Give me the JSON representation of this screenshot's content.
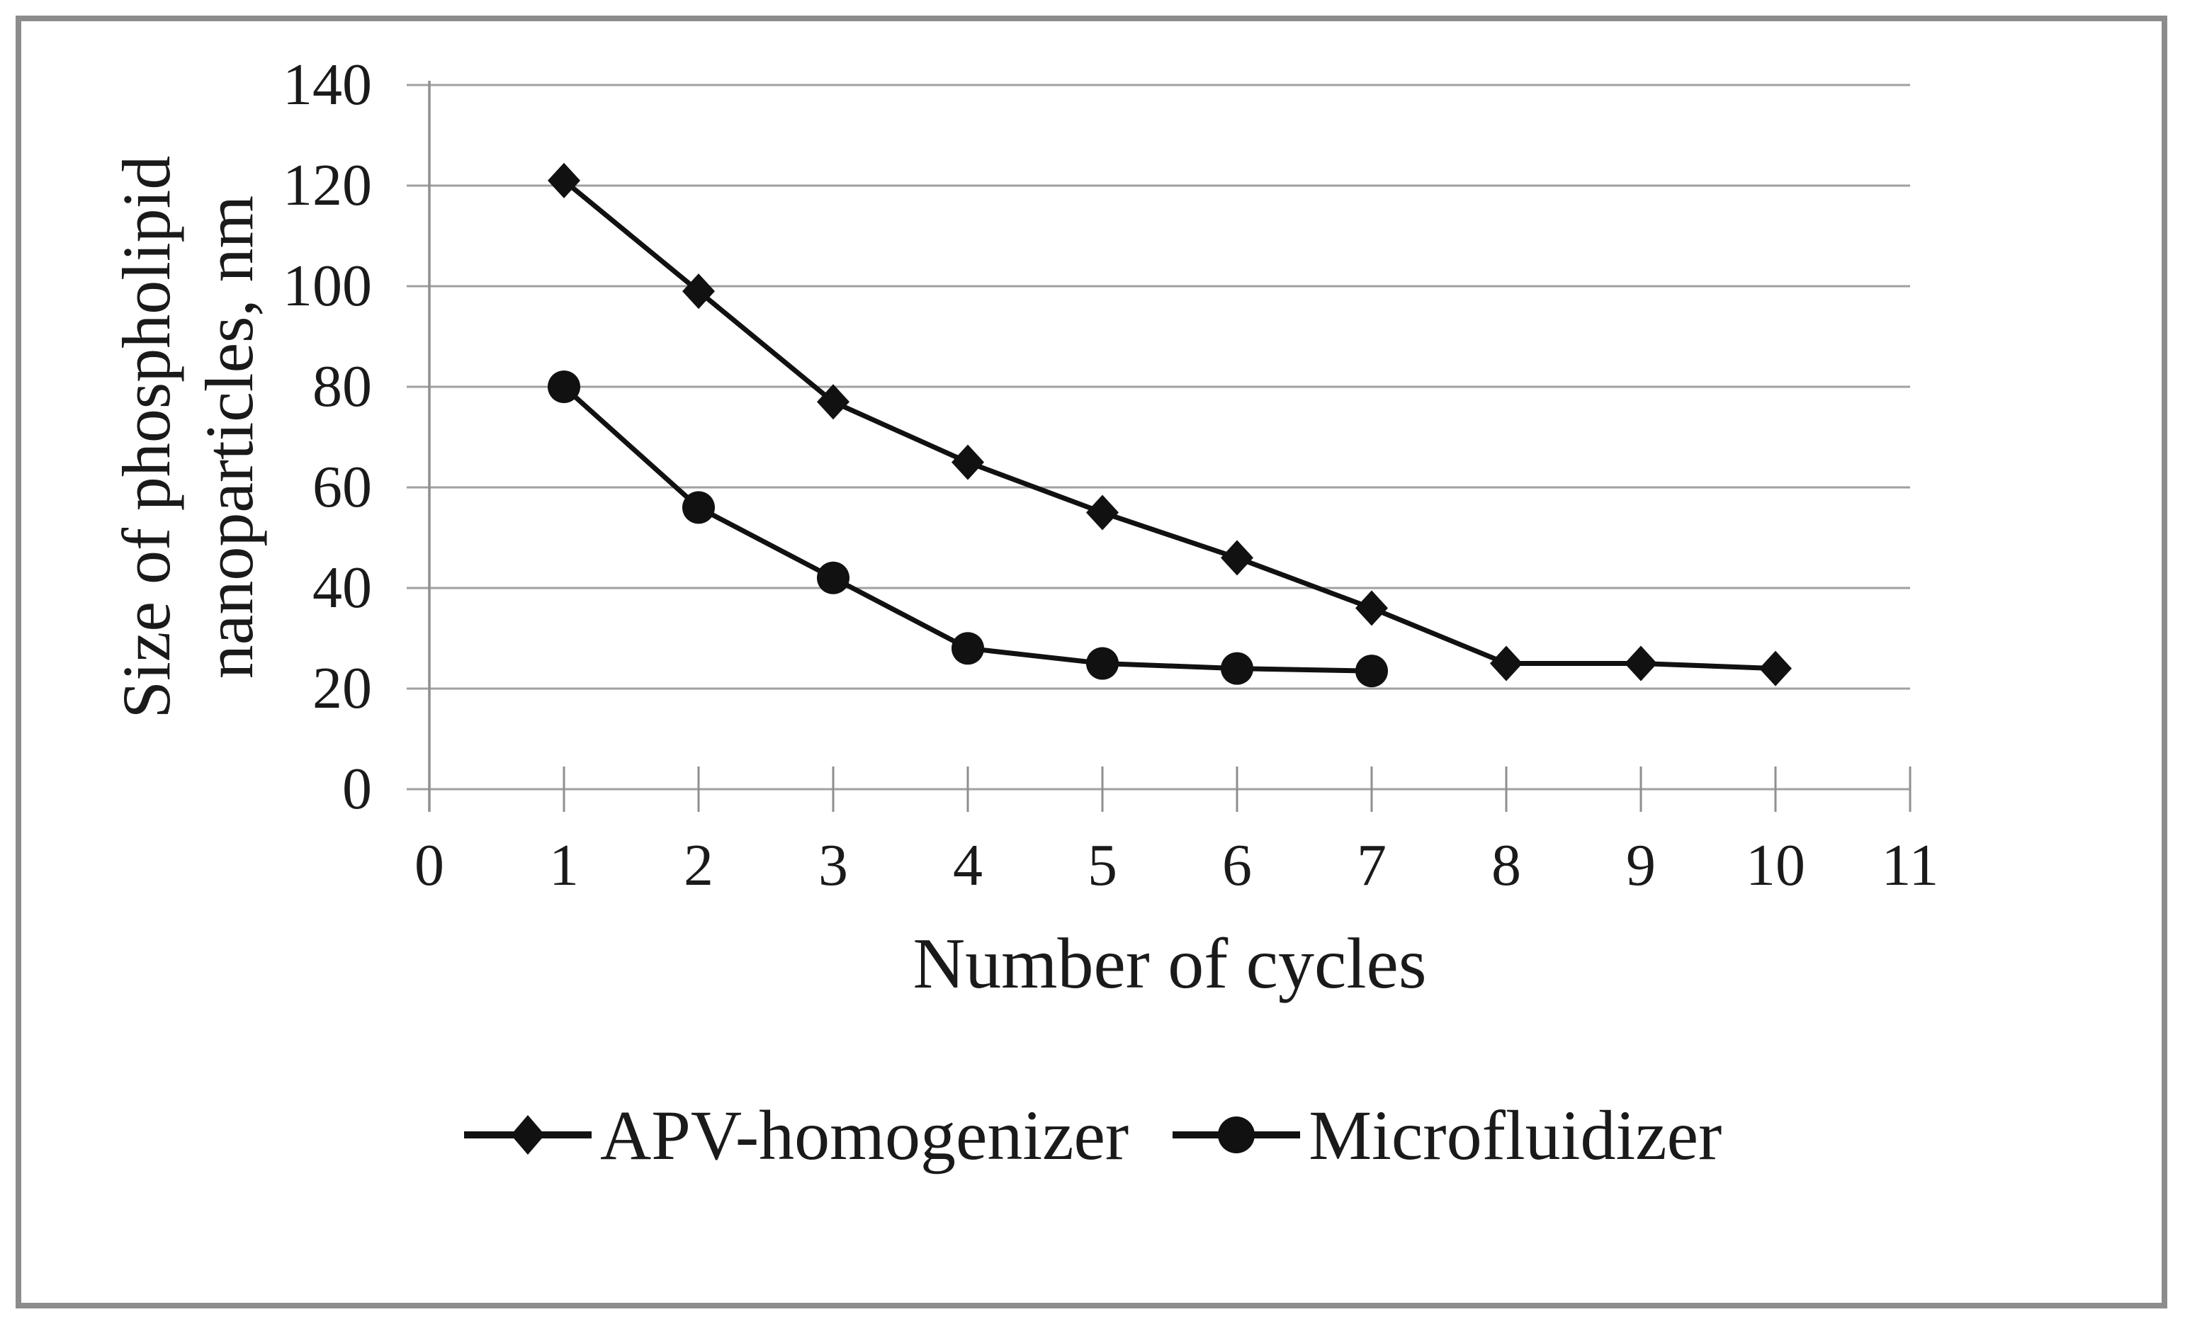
{
  "chart_data": {
    "type": "line",
    "xlabel": "Number of cycles",
    "ylabel": "Size of phospholipid nanoparticles, nm",
    "ylabel_lines": [
      "Size of phospholipid",
      "nanoparticles, nm"
    ],
    "xlim": [
      0,
      11
    ],
    "ylim": [
      0,
      140
    ],
    "x_ticks": [
      0,
      1,
      2,
      3,
      4,
      5,
      6,
      7,
      8,
      9,
      10,
      11
    ],
    "y_ticks": [
      0,
      20,
      40,
      60,
      80,
      100,
      120,
      140
    ],
    "grid": "horizontal",
    "legend_position": "bottom",
    "series": [
      {
        "name": "APV-homogenizer",
        "marker": "diamond",
        "x": [
          1,
          2,
          3,
          4,
          5,
          6,
          7,
          8,
          9,
          10
        ],
        "values": [
          121,
          99,
          77,
          65,
          55,
          46,
          36,
          25,
          25,
          24
        ]
      },
      {
        "name": "Microfluidizer",
        "marker": "circle",
        "x": [
          1,
          2,
          3,
          4,
          5,
          6,
          7
        ],
        "values": [
          80,
          56,
          42,
          28,
          25,
          24,
          23.5
        ]
      }
    ],
    "colors": {
      "line": "#111111",
      "grid": "#a0a0a0",
      "axis": "#8f8f8f",
      "text": "#1a1a1a",
      "frame": "#8c8c8c",
      "background": "#ffffff"
    }
  }
}
